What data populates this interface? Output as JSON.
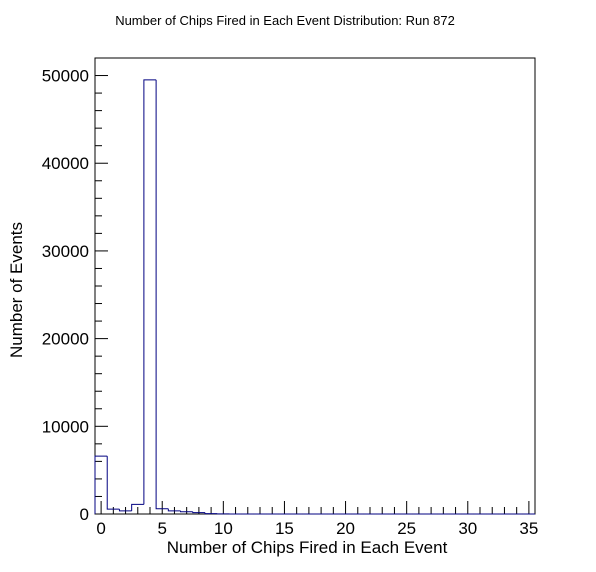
{
  "chart_data": {
    "type": "bar",
    "title": "Number of Chips Fired in Each Event Distribution: Run 872",
    "xlabel": "Number of Chips Fired in Each Event",
    "ylabel": "Number of Events",
    "xlim": [
      -0.5,
      35.5
    ],
    "ylim": [
      0,
      52000
    ],
    "x_ticks": [
      0,
      5,
      10,
      15,
      20,
      25,
      30,
      35
    ],
    "y_ticks": [
      0,
      10000,
      20000,
      30000,
      40000,
      50000
    ],
    "bin_width": 1,
    "bins": [
      0,
      1,
      2,
      3,
      4,
      5,
      6,
      7,
      8,
      9,
      10,
      11,
      12,
      13,
      14,
      15,
      16,
      17,
      18,
      19,
      20,
      21,
      22,
      23,
      24,
      25,
      26,
      27,
      28,
      29,
      30,
      31,
      32,
      33,
      34,
      35
    ],
    "values": [
      6600,
      550,
      350,
      1100,
      49500,
      600,
      350,
      250,
      150,
      40,
      10,
      0,
      0,
      0,
      0,
      0,
      0,
      0,
      0,
      0,
      0,
      0,
      0,
      0,
      0,
      0,
      0,
      0,
      0,
      0,
      0,
      0,
      0,
      0,
      0,
      0
    ],
    "line_color": "#000080",
    "grid": false,
    "legend": "none"
  }
}
